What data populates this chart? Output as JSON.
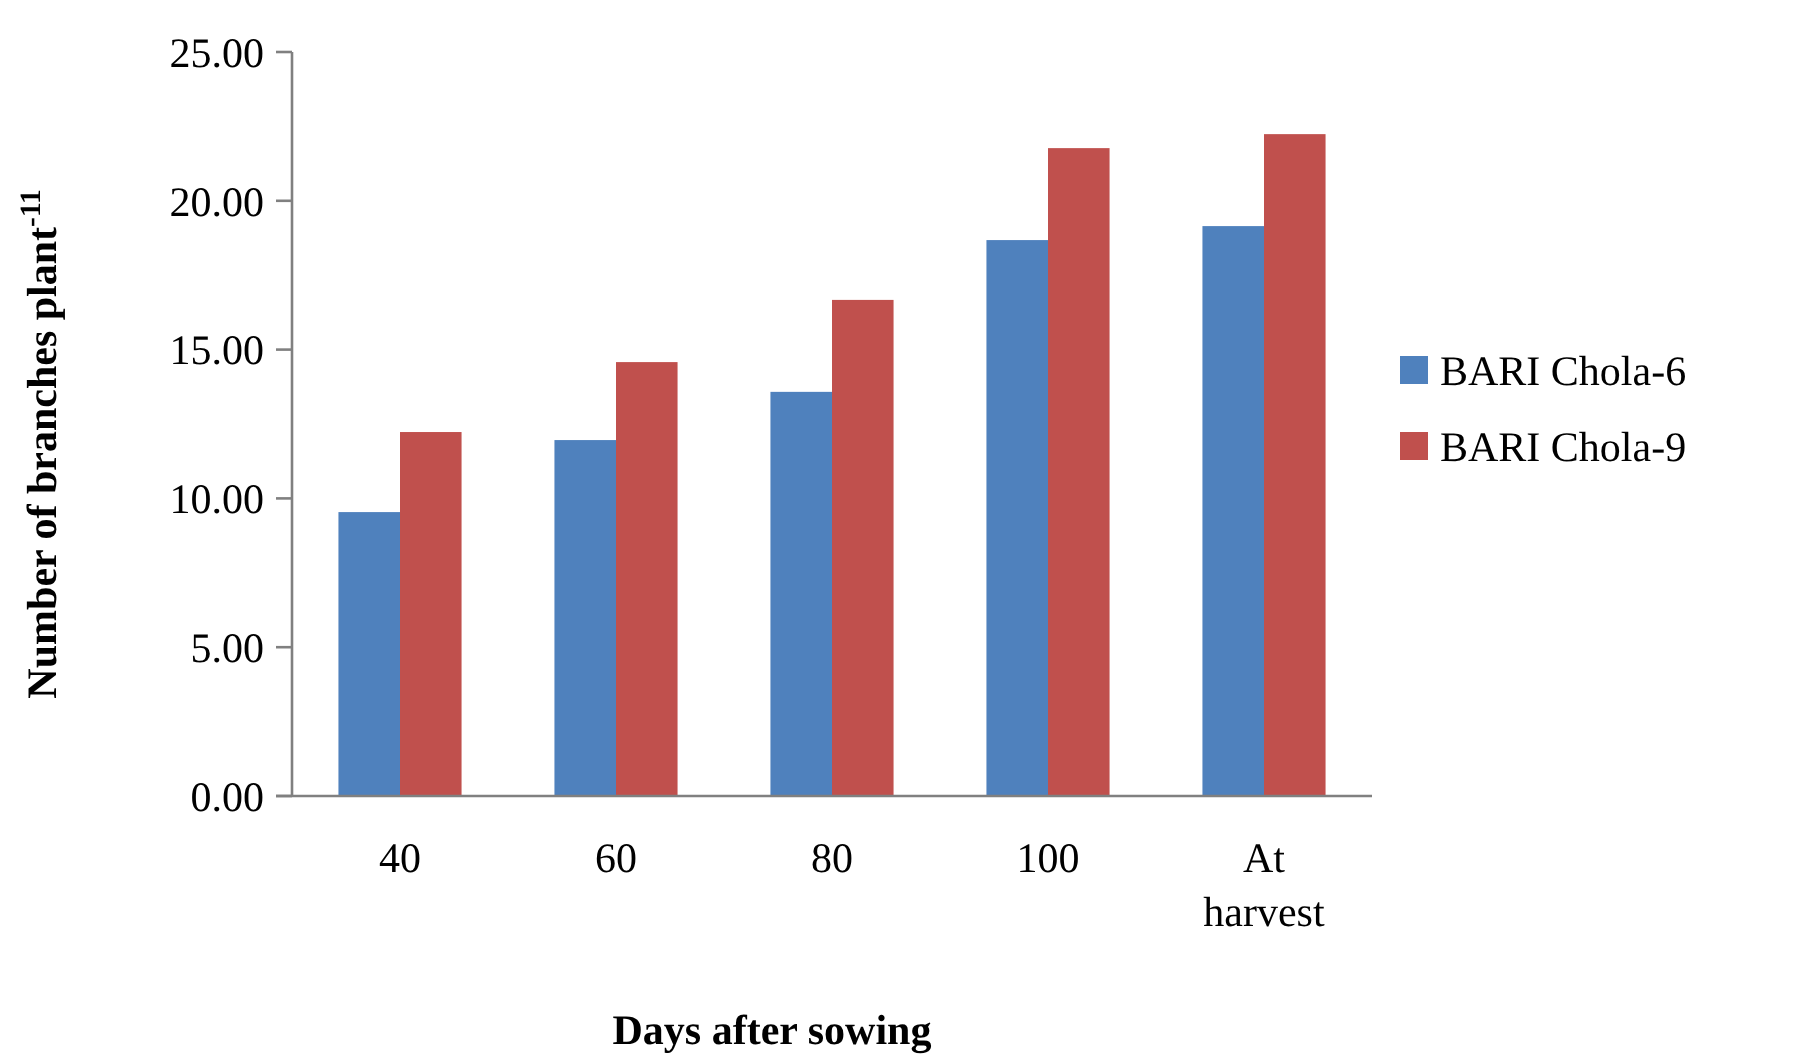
{
  "chart_data": {
    "type": "bar",
    "xlabel": "Days after sowing",
    "ylabel": "Number of branches plant$^{-11}$",
    "categories": [
      "40",
      "60",
      "80",
      "100",
      "At harvest"
    ],
    "series": [
      {
        "name": "BARI Chola-6",
        "color": "#4f81bd",
        "values": [
          9.54,
          11.96,
          13.58,
          18.68,
          19.15
        ]
      },
      {
        "name": "BARI Chola-9",
        "color": "#c0504d",
        "values": [
          12.23,
          14.58,
          16.67,
          21.77,
          22.24
        ]
      }
    ],
    "ylim": [
      0,
      25
    ],
    "yticks": [
      {
        "value": 0,
        "label": "0.00"
      },
      {
        "value": 5,
        "label": "5.00"
      },
      {
        "value": 10,
        "label": "10.00"
      },
      {
        "value": 15,
        "label": "15.00"
      },
      {
        "value": 20,
        "label": "20.00"
      },
      {
        "value": 25,
        "label": "25.00"
      }
    ],
    "grid": false,
    "legend": "right"
  }
}
